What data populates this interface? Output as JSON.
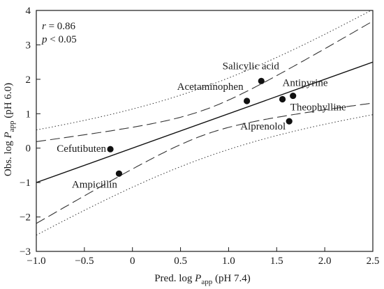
{
  "chart_data": {
    "type": "scatter",
    "xlabel": {
      "main": "Pred. log ",
      "P": "P",
      "sub": "app",
      "suffix": " (pH 7.4)"
    },
    "ylabel": {
      "main": "Obs. log ",
      "P": "P",
      "sub": "app",
      "suffix": " (pH 6.0)"
    },
    "xlim": [
      -1.0,
      2.5
    ],
    "ylim": [
      -3,
      4
    ],
    "xticks": [
      -1.0,
      -0.5,
      0.0,
      0.5,
      1.0,
      1.5,
      2.0,
      2.5
    ],
    "xtick_labels": [
      "−1.0",
      "−0.5",
      "0",
      "0.5",
      "1.0",
      "1.5",
      "2.0",
      "2.5"
    ],
    "yticks": [
      -3,
      -2,
      -1,
      0,
      1,
      2,
      3,
      4
    ],
    "ytick_labels": [
      "−3",
      "−2",
      "−1",
      "0",
      "1",
      "2",
      "3",
      "4"
    ],
    "stats": {
      "r_label": "r",
      "r_text": " = 0.86",
      "p_label": "p",
      "p_text": " < 0.05"
    },
    "grid": false,
    "points": [
      {
        "name": "Cefutibuten",
        "x": -0.23,
        "y": -0.03,
        "label_anchor": "end",
        "label_dx": -6,
        "label_dy": 4
      },
      {
        "name": "Ampicillin",
        "x": -0.14,
        "y": -0.74,
        "label_anchor": "middle",
        "label_dx": -35,
        "label_dy": 20
      },
      {
        "name": "Acetaminophen",
        "x": 1.19,
        "y": 1.37,
        "label_anchor": "end",
        "label_dx": -5,
        "label_dy": -16
      },
      {
        "name": "Salicylic acid",
        "x": 1.34,
        "y": 1.95,
        "label_anchor": "middle",
        "label_dx": -15,
        "label_dy": -17
      },
      {
        "name": "Antipyrine",
        "x": 1.56,
        "y": 1.42,
        "label_anchor": "start",
        "label_dx": 0,
        "label_dy": -19
      },
      {
        "name": "Theophylline",
        "x": 1.67,
        "y": 1.52,
        "label_anchor": "start",
        "label_dx": -4,
        "label_dy": 21
      },
      {
        "name": "Alprenolol",
        "x": 1.63,
        "y": 0.78,
        "label_anchor": "end",
        "label_dx": -5,
        "label_dy": 12
      }
    ],
    "regression": {
      "intercept": 0.0,
      "slope": 1.0,
      "x_mean": 0.75,
      "se": 0.48,
      "n": 7
    },
    "confidence_band_style": "dashed",
    "prediction_band_style": "dotted"
  }
}
